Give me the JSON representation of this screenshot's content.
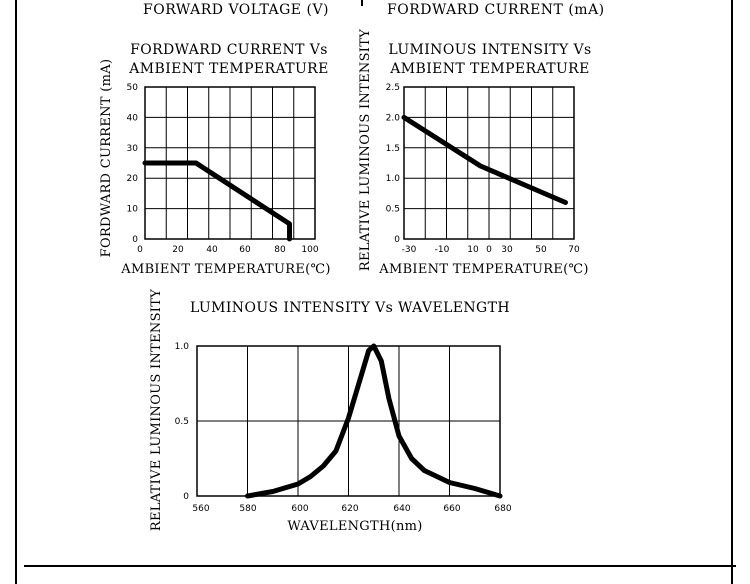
{
  "header": {
    "left_label": "FORWARD VOLTAGE (V)",
    "right_label": "FORDWARD CURRENT (mA)"
  },
  "chart_data": [
    {
      "type": "line",
      "title": [
        "FORDWARD CURRENT Vs",
        "AMBIENT TEMPERATURE"
      ],
      "xlabel": "AMBIENT TEMPERATURE(℃)",
      "ylabel": "FORDWARD CURRENT (mA)",
      "xlim": [
        0,
        100
      ],
      "ylim": [
        0,
        50
      ],
      "xticks": [
        "0",
        "20",
        "40",
        "60",
        "80",
        "100"
      ],
      "yticks": [
        "0",
        "10",
        "20",
        "30",
        "40",
        "50"
      ],
      "x": [
        0,
        30,
        85,
        85
      ],
      "y": [
        25,
        25,
        5,
        0
      ]
    },
    {
      "type": "line",
      "title": [
        "LUMINOUS INTENSITY Vs",
        "AMBIENT TEMPERATURE"
      ],
      "xlabel": "AMBIENT TEMPERATURE(℃)",
      "ylabel": "RELATIVE LUMINOUS INTENSITY",
      "xlim": [
        -30,
        70
      ],
      "ylim": [
        0,
        2.5
      ],
      "xticks": [
        "-30",
        "-10",
        "10",
        "0",
        "30",
        "50",
        "70"
      ],
      "yticks": [
        "0",
        "0.5",
        "1.0",
        "1.5",
        "2.0",
        "2.5"
      ],
      "x": [
        -30,
        15,
        65
      ],
      "y": [
        2.0,
        1.2,
        0.6
      ]
    },
    {
      "type": "line",
      "title": [
        "LUMINOUS INTENSITY Vs WAVELENGTH"
      ],
      "xlabel": "WAVELENGTH(nm)",
      "ylabel": "RELATIVE LUMINOUS INTENSITY",
      "xlim": [
        560,
        680
      ],
      "ylim": [
        0,
        1.0
      ],
      "xticks": [
        "560",
        "580",
        "600",
        "620",
        "640",
        "660",
        "680"
      ],
      "yticks": [
        "0",
        "0.5",
        "1.0"
      ],
      "x": [
        580,
        590,
        600,
        605,
        610,
        615,
        620,
        625,
        628,
        630,
        633,
        636,
        640,
        645,
        650,
        660,
        670,
        680
      ],
      "y": [
        0,
        0.03,
        0.08,
        0.13,
        0.2,
        0.3,
        0.52,
        0.8,
        0.97,
        1.0,
        0.9,
        0.65,
        0.4,
        0.25,
        0.17,
        0.09,
        0.05,
        0
      ]
    }
  ]
}
